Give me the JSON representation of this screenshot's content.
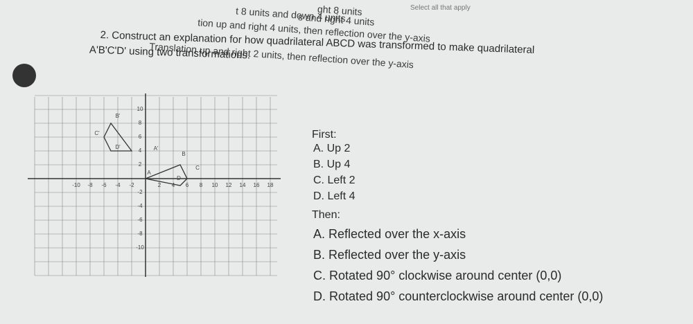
{
  "select_note": "Select all that apply",
  "prior_options": [
    "ght 8 units",
    "s and right 4 units",
    "t 8 units and down 4 units",
    "tion up and right 4 units, then reflection over the y-axis",
    "Translation up and right 2 units, then reflection over the y-axis"
  ],
  "question": {
    "line1": "2. Construct an explanation for how quadrilateral ABCD was transformed to make quadrilateral",
    "line2": "A'B'C'D' using two transformations."
  },
  "graph": {
    "x_labels": [
      "-10",
      "-8",
      "-6",
      "-4",
      "-2",
      "2",
      "4",
      "6",
      "8",
      "10",
      "12",
      "14",
      "16",
      "18"
    ],
    "y_labels": [
      "10",
      "8",
      "6",
      "4",
      "2",
      "-2",
      "-4",
      "-6",
      "-8",
      "-10"
    ],
    "points": [
      "B'",
      "C'",
      "D'",
      "A'",
      "B",
      "C",
      "A",
      "D"
    ]
  },
  "first": {
    "label": "First:",
    "options": [
      {
        "letter": "A.",
        "text": "Up 2"
      },
      {
        "letter": "B.",
        "text": "Up 4"
      },
      {
        "letter": "C.",
        "text": "Left 2"
      },
      {
        "letter": "D.",
        "text": "Left 4"
      }
    ]
  },
  "then": {
    "label": "Then:",
    "options": [
      {
        "letter": "A.",
        "text": "Reflected over the x-axis"
      },
      {
        "letter": "B.",
        "text": "Reflected over the y-axis"
      },
      {
        "letter": "C.",
        "text": "Rotated 90° clockwise around center (0,0)"
      },
      {
        "letter": "D.",
        "text": "Rotated 90° counterclockwise around center (0,0)"
      }
    ]
  }
}
